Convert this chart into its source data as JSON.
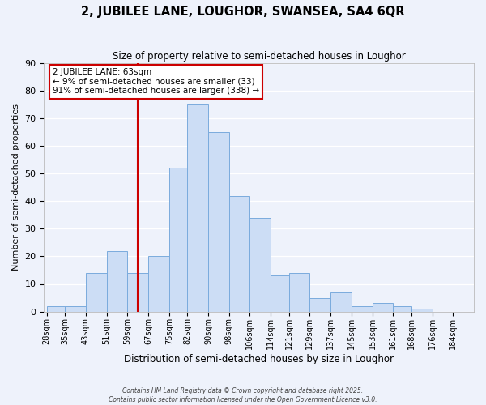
{
  "title": "2, JUBILEE LANE, LOUGHOR, SWANSEA, SA4 6QR",
  "subtitle": "Size of property relative to semi-detached houses in Loughor",
  "xlabel": "Distribution of semi-detached houses by size in Loughor",
  "ylabel": "Number of semi-detached properties",
  "bin_edges": [
    28,
    35,
    43,
    51,
    59,
    67,
    75,
    82,
    90,
    98,
    106,
    114,
    121,
    129,
    137,
    145,
    153,
    161,
    168,
    176,
    184
  ],
  "bar_heights": [
    2,
    2,
    14,
    22,
    14,
    20,
    52,
    75,
    65,
    42,
    34,
    13,
    14,
    5,
    7,
    2,
    3,
    2,
    1,
    0
  ],
  "bar_color": "#ccddf5",
  "bar_edge_color": "#7aabdd",
  "property_size": 63,
  "red_line_color": "#cc0000",
  "annotation_title": "2 JUBILEE LANE: 63sqm",
  "annotation_line1": "← 9% of semi-detached houses are smaller (33)",
  "annotation_line2": "91% of semi-detached houses are larger (338) →",
  "annotation_box_edge": "#cc0000",
  "ylim": [
    0,
    90
  ],
  "yticks": [
    0,
    10,
    20,
    30,
    40,
    50,
    60,
    70,
    80,
    90
  ],
  "tick_labels": [
    "28sqm",
    "35sqm",
    "43sqm",
    "51sqm",
    "59sqm",
    "67sqm",
    "75sqm",
    "82sqm",
    "90sqm",
    "98sqm",
    "106sqm",
    "114sqm",
    "121sqm",
    "129sqm",
    "137sqm",
    "145sqm",
    "153sqm",
    "161sqm",
    "168sqm",
    "176sqm",
    "184sqm"
  ],
  "background_color": "#eef2fb",
  "grid_color": "#ffffff",
  "footer1": "Contains HM Land Registry data © Crown copyright and database right 2025.",
  "footer2": "Contains public sector information licensed under the Open Government Licence v3.0."
}
